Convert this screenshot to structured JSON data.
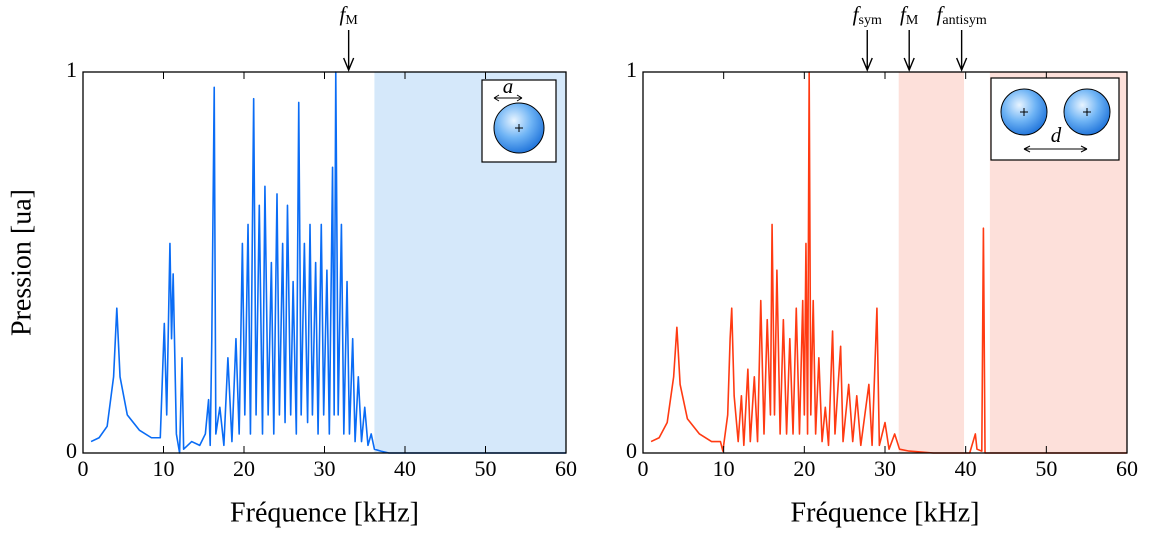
{
  "chart_data": [
    {
      "type": "line",
      "xlabel": "Fréquence [kHz]",
      "ylabel": "Pression [ua]",
      "color": "#0a6cf5",
      "xlim": [
        0,
        60
      ],
      "ylim": [
        0,
        1
      ],
      "xticks": [
        0,
        10,
        20,
        30,
        40,
        50,
        60
      ],
      "yticks": [
        0,
        1
      ],
      "spans": [
        {
          "from": 36.2,
          "to": 60,
          "color": "#d5e8fa"
        }
      ],
      "annotations": [
        {
          "label": "f",
          "sub": "M",
          "x": 33
        }
      ],
      "inset_label": "a",
      "x": [
        1.0,
        2.0,
        3.0,
        3.8,
        4.2,
        4.6,
        5.5,
        7,
        8.5,
        9.6,
        10.1,
        10.4,
        10.8,
        11.0,
        11.2,
        11.6,
        12.0,
        12.3,
        12.5,
        13.5,
        14.5,
        15.2,
        15.6,
        15.8,
        16.0,
        16.3,
        16.5,
        17.0,
        17.5,
        18.0,
        18.5,
        19.0,
        19.4,
        19.8,
        20.1,
        20.5,
        20.8,
        21.2,
        21.5,
        21.9,
        22.3,
        22.6,
        23.0,
        23.4,
        23.7,
        24.1,
        24.4,
        24.8,
        25.1,
        25.4,
        25.8,
        26.1,
        26.5,
        26.8,
        27.1,
        27.5,
        27.9,
        28.2,
        28.5,
        28.9,
        29.2,
        29.6,
        29.9,
        30.3,
        30.6,
        31.0,
        31.2,
        31.4,
        31.7,
        32.1,
        32.4,
        32.8,
        33.1,
        33.5,
        33.8,
        34.2,
        34.6,
        35.0,
        35.4,
        35.8,
        36.2,
        37,
        38,
        40,
        60
      ],
      "values": [
        0.03,
        0.04,
        0.07,
        0.2,
        0.38,
        0.2,
        0.1,
        0.06,
        0.04,
        0.04,
        0.34,
        0.1,
        0.55,
        0.3,
        0.47,
        0.05,
        0,
        0.25,
        0.01,
        0.03,
        0.02,
        0.05,
        0.14,
        0.02,
        0.3,
        0.96,
        0.05,
        0.12,
        0.02,
        0.25,
        0.03,
        0.3,
        0.05,
        0.55,
        0.1,
        0.6,
        0.05,
        0.93,
        0.1,
        0.65,
        0.05,
        0.7,
        0.1,
        0.5,
        0.05,
        0.68,
        0.1,
        0.55,
        0.08,
        0.65,
        0.1,
        0.45,
        0.05,
        0.92,
        0.1,
        0.55,
        0.08,
        0.6,
        0.1,
        0.5,
        0.05,
        0.6,
        0.1,
        0.48,
        0.05,
        0.75,
        0.1,
        1.0,
        0.1,
        0.6,
        0.05,
        0.45,
        0.05,
        0.3,
        0.03,
        0.2,
        0.03,
        0.12,
        0.02,
        0.05,
        0.01,
        0.005,
        0,
        0,
        0
      ]
    },
    {
      "type": "line",
      "xlabel": "Fréquence [kHz]",
      "color": "#ff3a12",
      "xlim": [
        0,
        60
      ],
      "ylim": [
        0,
        1
      ],
      "xticks": [
        0,
        10,
        20,
        30,
        40,
        50,
        60
      ],
      "yticks": [
        0,
        1
      ],
      "spans": [
        {
          "from": 31.7,
          "to": 39.8,
          "color": "#fde0da"
        },
        {
          "from": 43,
          "to": 60,
          "color": "#fde0da"
        }
      ],
      "annotations": [
        {
          "label": "f",
          "sub": "sym",
          "x": 27.8
        },
        {
          "label": "f",
          "sub": "M",
          "x": 33
        },
        {
          "label": "f",
          "sub": "antisym",
          "x": 39.5
        }
      ],
      "inset_label": "d",
      "x": [
        1,
        2,
        3,
        3.8,
        4.2,
        4.6,
        5.5,
        7,
        8.5,
        9.6,
        9.9,
        10.5,
        10.8,
        11.0,
        11.3,
        11.8,
        12.2,
        12.5,
        13.0,
        13.3,
        13.8,
        14.2,
        14.6,
        15.0,
        15.4,
        15.8,
        16.0,
        16.3,
        16.6,
        17.0,
        17.4,
        17.8,
        18.2,
        18.6,
        19.0,
        19.4,
        19.8,
        20.0,
        20.2,
        20.4,
        20.6,
        20.8,
        21.1,
        21.4,
        21.8,
        22.2,
        22.6,
        23.0,
        23.5,
        23.8,
        24.5,
        24.8,
        25.5,
        26,
        26.5,
        27,
        28.0,
        28.4,
        29.0,
        29.3,
        30,
        30.5,
        31.2,
        31.8,
        33,
        36,
        39,
        40.5,
        41.2,
        41.4,
        42.0,
        42.2,
        42.4,
        45,
        60
      ],
      "values": [
        0.03,
        0.04,
        0.08,
        0.2,
        0.33,
        0.18,
        0.09,
        0.05,
        0.03,
        0.03,
        0.005,
        0.1,
        0.3,
        0.38,
        0.15,
        0.03,
        0.15,
        0.02,
        0.22,
        0.03,
        0.2,
        0.03,
        0.4,
        0.05,
        0.35,
        0.1,
        0.6,
        0.1,
        0.48,
        0.05,
        0.35,
        0.05,
        0.3,
        0.05,
        0.38,
        0.05,
        0.4,
        0.1,
        0.55,
        0.05,
        1.0,
        0.1,
        0.4,
        0.05,
        0.25,
        0.03,
        0.12,
        0.02,
        0.32,
        0.05,
        0.28,
        0.03,
        0.18,
        0.03,
        0.15,
        0.02,
        0.18,
        0.02,
        0.38,
        0.02,
        0.08,
        0.01,
        0.05,
        0.01,
        0.005,
        0,
        0,
        0,
        0.05,
        0.01,
        0.005,
        0.59,
        0,
        0,
        0
      ]
    }
  ]
}
